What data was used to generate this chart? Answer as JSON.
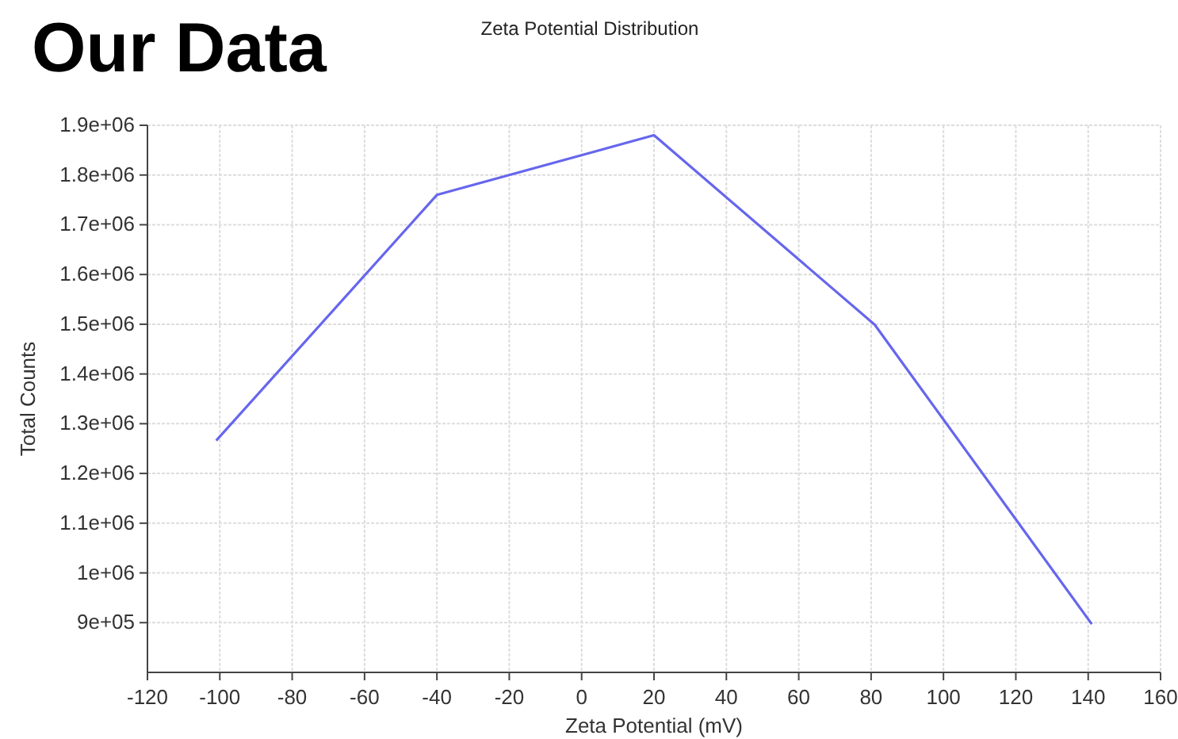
{
  "chart_data": {
    "type": "line",
    "title": "Our Data",
    "subtitle": "Zeta Potential Distribution",
    "xlabel": "Zeta Potential (mV)",
    "ylabel": "Total Counts",
    "x": [
      -101,
      -40,
      20,
      81,
      141
    ],
    "series": [
      {
        "color": "#6666ee",
        "values": [
          1266000,
          1760000,
          1880000,
          1499000,
          897000
        ]
      }
    ],
    "xlim": [
      -120,
      160
    ],
    "xticks": [
      -120,
      -100,
      -80,
      -60,
      -40,
      -20,
      0,
      20,
      40,
      60,
      80,
      100,
      120,
      140,
      160
    ],
    "ylim": [
      800000,
      1900000
    ],
    "yticks": [
      {
        "value": 900000,
        "label": "9e+05"
      },
      {
        "value": 1000000,
        "label": "1e+06"
      },
      {
        "value": 1100000,
        "label": "1.1e+06"
      },
      {
        "value": 1200000,
        "label": "1.2e+06"
      },
      {
        "value": 1300000,
        "label": "1.3e+06"
      },
      {
        "value": 1400000,
        "label": "1.4e+06"
      },
      {
        "value": 1500000,
        "label": "1.5e+06"
      },
      {
        "value": 1600000,
        "label": "1.6e+06"
      },
      {
        "value": 1700000,
        "label": "1.7e+06"
      },
      {
        "value": 1800000,
        "label": "1.8e+06"
      },
      {
        "value": 1900000,
        "label": "1.9e+06"
      }
    ],
    "grid": true,
    "marker": "none",
    "line_style": "solid"
  }
}
